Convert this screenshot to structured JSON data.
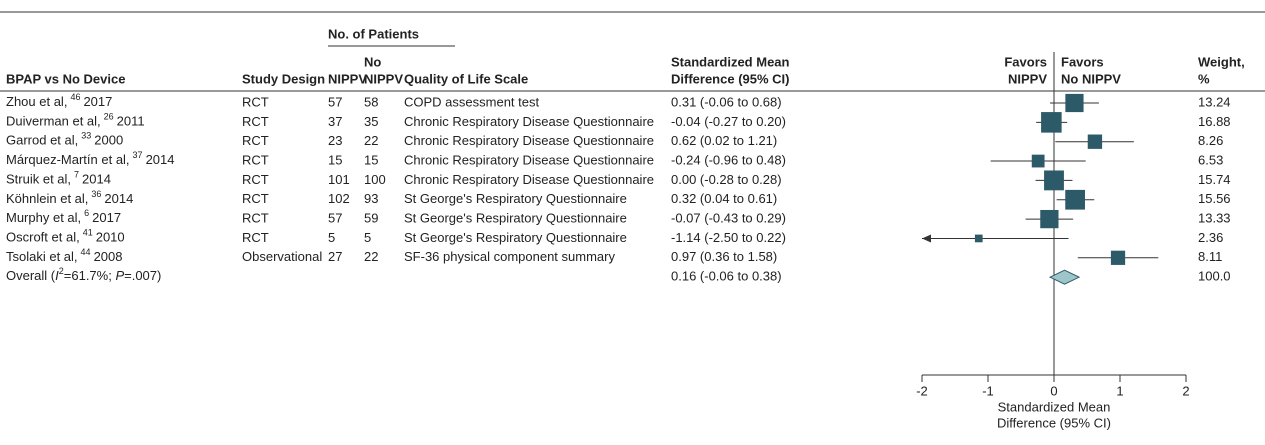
{
  "chart_data": {
    "type": "forest",
    "column_group": "No. of Patients",
    "columns": {
      "study": "BPAP vs No Device",
      "design": "Study Design",
      "nippv": "NIPPV",
      "no_nippv_1": "No",
      "no_nippv_2": "NIPPV",
      "scale": "Quality of Life Scale",
      "ci_1": "Standardized Mean",
      "ci_2": "Difference (95% CI)",
      "favors_left_1": "Favors",
      "favors_left_2": "NIPPV",
      "favors_right_1": "Favors",
      "favors_right_2": "No NIPPV",
      "weight_1": "Weight,",
      "weight_2": "%"
    },
    "studies": [
      {
        "name": "Zhou et al,",
        "ref": "46",
        "year": "2017",
        "design": "RCT",
        "nippv": 57,
        "no_nippv": 58,
        "scale": "COPD assessment test",
        "smd": 0.31,
        "lo": -0.06,
        "hi": 0.68,
        "ci": "0.31 (-0.06 to 0.68)",
        "weight": 13.24
      },
      {
        "name": "Duiverman et al,",
        "ref": "26",
        "year": "2011",
        "design": "RCT",
        "nippv": 37,
        "no_nippv": 35,
        "scale": "Chronic Respiratory Disease Questionnaire",
        "smd": -0.04,
        "lo": -0.27,
        "hi": 0.2,
        "ci": "-0.04 (-0.27 to 0.20)",
        "weight": 16.88
      },
      {
        "name": "Garrod et al,",
        "ref": "33",
        "year": "2000",
        "design": "RCT",
        "nippv": 23,
        "no_nippv": 22,
        "scale": "Chronic Respiratory Disease Questionnaire",
        "smd": 0.62,
        "lo": 0.02,
        "hi": 1.21,
        "ci": "0.62 (0.02 to 1.21)",
        "weight": 8.26
      },
      {
        "name": "Márquez-Martín et al,",
        "ref": "37",
        "year": "2014",
        "design": "RCT",
        "nippv": 15,
        "no_nippv": 15,
        "scale": "Chronic Respiratory Disease Questionnaire",
        "smd": -0.24,
        "lo": -0.96,
        "hi": 0.48,
        "ci": "-0.24 (-0.96 to 0.48)",
        "weight": 6.53
      },
      {
        "name": "Struik et al,",
        "ref": "7",
        "year": "2014",
        "design": "RCT",
        "nippv": 101,
        "no_nippv": 100,
        "scale": "Chronic Respiratory Disease Questionnaire",
        "smd": 0.0,
        "lo": -0.28,
        "hi": 0.28,
        "ci": "0.00 (-0.28 to 0.28)",
        "weight": 15.74
      },
      {
        "name": "Köhnlein et al,",
        "ref": "36",
        "year": "2014",
        "design": "RCT",
        "nippv": 102,
        "no_nippv": 93,
        "scale": "St George's Respiratory Questionnaire",
        "smd": 0.32,
        "lo": 0.04,
        "hi": 0.61,
        "ci": "0.32 (0.04 to 0.61)",
        "weight": 15.56
      },
      {
        "name": "Murphy et al,",
        "ref": "6",
        "year": "2017",
        "design": "RCT",
        "nippv": 57,
        "no_nippv": 59,
        "scale": "St George's Respiratory Questionnaire",
        "smd": -0.07,
        "lo": -0.43,
        "hi": 0.29,
        "ci": "-0.07 (-0.43 to 0.29)",
        "weight": 13.33
      },
      {
        "name": "Oscroft et al,",
        "ref": "41",
        "year": "2010",
        "design": "RCT",
        "nippv": 5,
        "no_nippv": 5,
        "scale": "St George's Respiratory Questionnaire",
        "smd": -1.14,
        "lo": -2.5,
        "hi": 0.22,
        "ci": "-1.14 (-2.50 to 0.22)",
        "weight": 2.36
      },
      {
        "name": "Tsolaki et al,",
        "ref": "44",
        "year": "2008",
        "design": "Observational",
        "nippv": 27,
        "no_nippv": 22,
        "scale": "SF-36 physical component summary",
        "smd": 0.97,
        "lo": 0.36,
        "hi": 1.58,
        "ci": "0.97 (0.36 to 1.58)",
        "weight": 8.11
      }
    ],
    "overall": {
      "label_start": "Overall (",
      "i": "I",
      "i_sup": "2",
      "label_mid": "=61.7%; ",
      "p": "P",
      "label_end": "=.007)",
      "smd": 0.16,
      "lo": -0.06,
      "hi": 0.38,
      "ci": "0.16 (-0.06 to 0.38)",
      "weight": "100.0"
    },
    "xlim": [
      -2,
      2
    ],
    "xticks": [
      -2,
      -1,
      0,
      1,
      2
    ],
    "xlabel_1": "Standardized Mean",
    "xlabel_2": "Difference (95% CI)",
    "color": "#2d5a68",
    "overall_color": "#9ec5c8"
  }
}
